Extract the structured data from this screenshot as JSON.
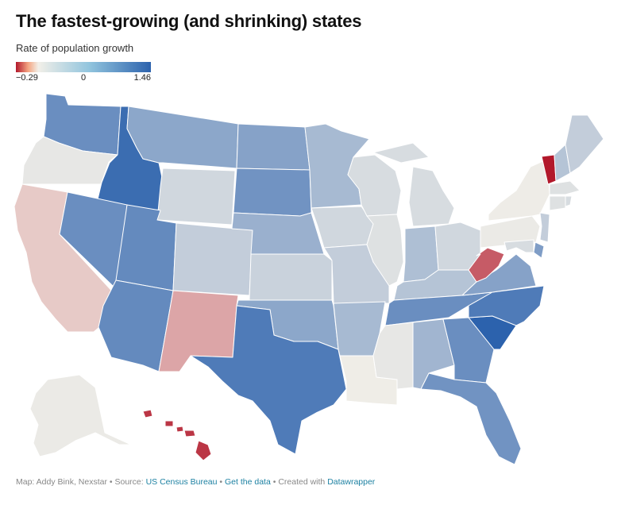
{
  "header": {
    "title": "The fastest-growing (and shrinking) states",
    "subtitle": "Rate of population growth"
  },
  "legend": {
    "min_label": "−0.29",
    "mid_label": "0",
    "max_label": "1.46",
    "min": -0.29,
    "mid": 0,
    "max": 1.46,
    "colors": {
      "low": "#b2182b",
      "neutral": "#f2efe8",
      "high": "#2c62ad"
    }
  },
  "states": {
    "WA": 1.0,
    "OR": 0.08,
    "CA": -0.05,
    "ID": 1.35,
    "NV": 1.0,
    "MT": 0.75,
    "WY": 0.25,
    "UT": 1.05,
    "AZ": 1.05,
    "CO": 0.35,
    "NM": -0.1,
    "ND": 0.8,
    "SD": 0.95,
    "NE": 0.65,
    "KS": 0.3,
    "OK": 0.75,
    "TX": 1.2,
    "MN": 0.55,
    "IA": 0.25,
    "MO": 0.35,
    "AR": 0.55,
    "LA": 0.02,
    "WI": 0.2,
    "IL": 0.15,
    "MI": 0.2,
    "IN": 0.5,
    "OH": 0.25,
    "KY": 0.45,
    "TN": 1.0,
    "MS": 0.08,
    "AL": 0.6,
    "GA": 1.0,
    "FL": 0.95,
    "SC": 1.46,
    "NC": 1.2,
    "VA": 0.8,
    "WV": -0.2,
    "PA": 0.05,
    "NY": 0.03,
    "VT": -0.29,
    "NH": 0.45,
    "ME": 0.35,
    "MA": 0.15,
    "CT": 0.15,
    "RI": 0.2,
    "NJ": 0.35,
    "DE": 0.85,
    "MD": 0.2,
    "AK": 0.05,
    "HI": -0.25
  },
  "footer": {
    "map_credit": "Map: Addy Bink, Nexstar",
    "sep": " • ",
    "source_label": "Source: ",
    "source_link": "US Census Bureau",
    "data_link": "Get the data",
    "created_label": "Created with ",
    "tool_link": "Datawrapper"
  }
}
